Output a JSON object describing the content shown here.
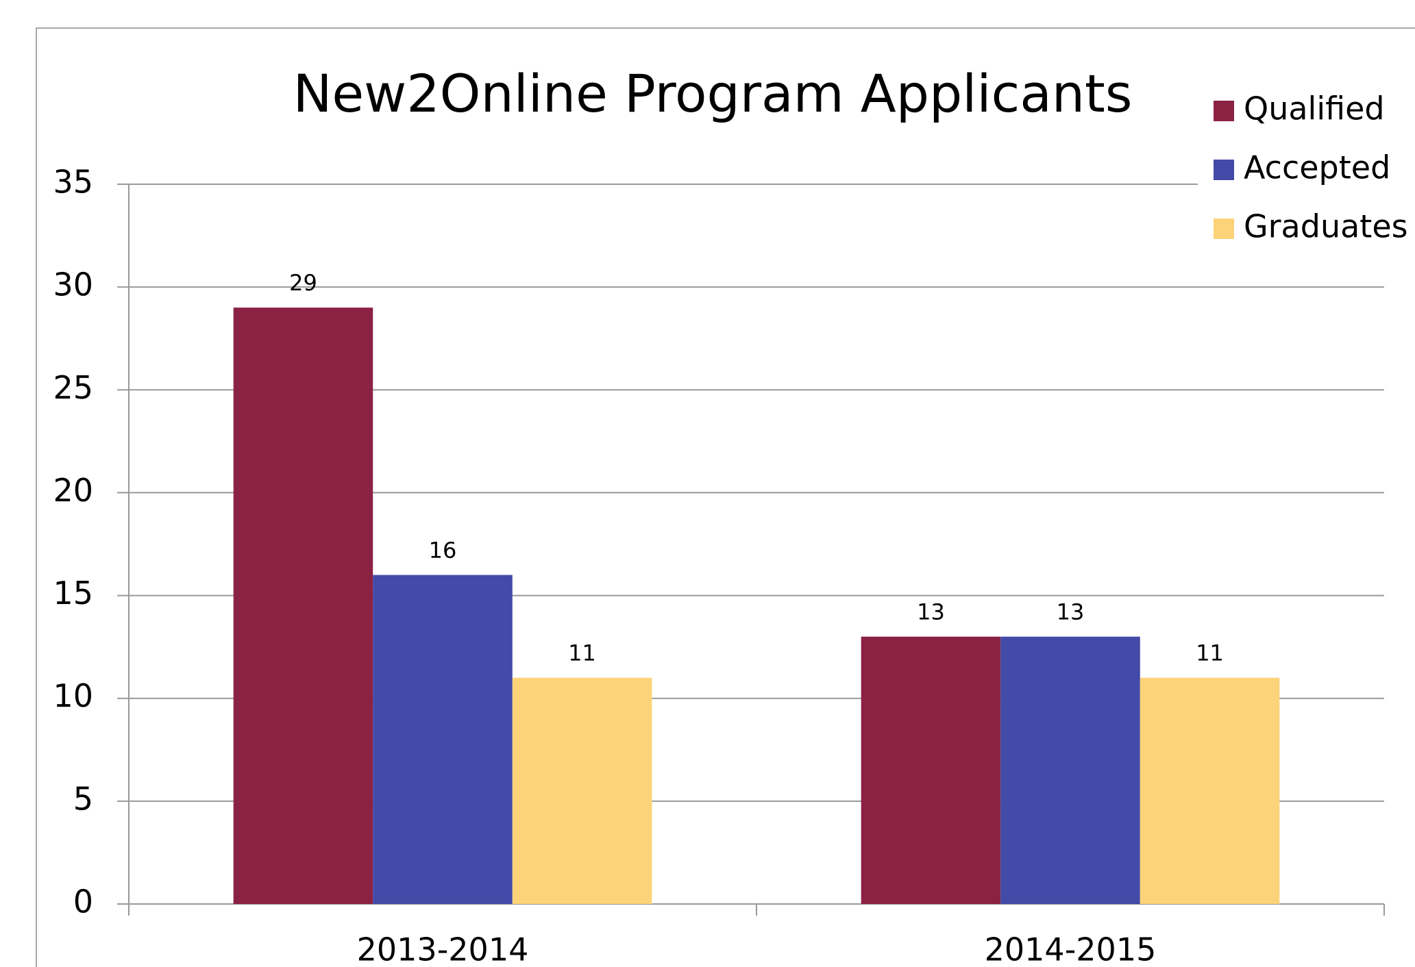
{
  "chart_data": {
    "type": "bar",
    "title": "New2Online Program Applicants",
    "categories": [
      "2013-2014",
      "2014-2015"
    ],
    "series": [
      {
        "name": "Qualified",
        "color": "#8b2143",
        "values": [
          29,
          13
        ]
      },
      {
        "name": "Accepted",
        "color": "#434aa8",
        "values": [
          16,
          13
        ]
      },
      {
        "name": "Graduates",
        "color": "#fdd37a",
        "values": [
          11,
          11
        ]
      }
    ],
    "ylim": [
      0,
      35
    ],
    "yticks": [
      0,
      5,
      10,
      15,
      20,
      25,
      30,
      35
    ],
    "grid": true,
    "legend": "top-right"
  }
}
